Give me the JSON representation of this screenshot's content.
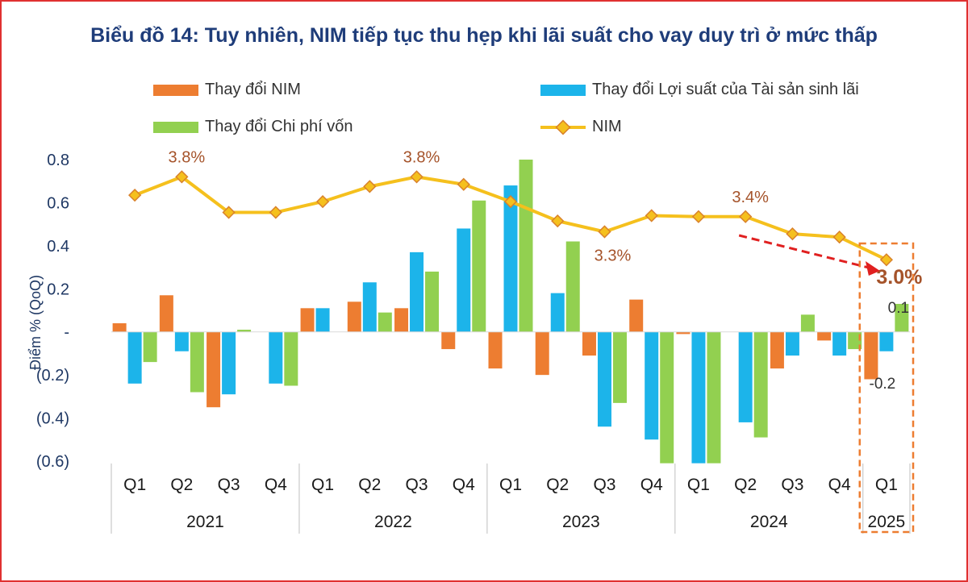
{
  "title": "Biểu đồ 14: Tuy nhiên, NIM tiếp tục thu hẹp khi lãi suất cho vay duy trì ở mức thấp",
  "legend": {
    "nim_change": "Thay đổi NIM",
    "yield_change": "Thay đổi Lợi suất của Tài sản sinh lãi",
    "cof_change": "Thay đổi Chi phí vốn",
    "nim": "NIM"
  },
  "colors": {
    "nim_change": "#ed7d31",
    "yield_change": "#1cb4ea",
    "cof_change": "#92d050",
    "nim": "#f5c01d",
    "nim_marker_edge": "#d9822b",
    "axis_text": "#1f3864",
    "label_text": "#a5532a",
    "arrow": "#e02020",
    "highlight": "#ed7d31"
  },
  "chart_data": {
    "type": "bar",
    "ylabel": "Điểm % (QoQ)",
    "ylim": [
      -0.6,
      0.8
    ],
    "yticks": [
      0.8,
      0.6,
      0.4,
      0.2,
      0,
      -0.2,
      -0.4,
      -0.6
    ],
    "ytick_labels": [
      "0.8",
      "0.6",
      "0.4",
      "0.2",
      "-",
      "(0.2)",
      "(0.4)",
      "(0.6)"
    ],
    "categories": [
      "Q1",
      "Q2",
      "Q3",
      "Q4",
      "Q1",
      "Q2",
      "Q3",
      "Q4",
      "Q1",
      "Q2",
      "Q3",
      "Q4",
      "Q1",
      "Q2",
      "Q3",
      "Q4",
      "Q1"
    ],
    "years": [
      {
        "label": "2021",
        "count": 4
      },
      {
        "label": "2022",
        "count": 4
      },
      {
        "label": "2023",
        "count": 4
      },
      {
        "label": "2024",
        "count": 4
      },
      {
        "label": "2025",
        "count": 1
      }
    ],
    "series": [
      {
        "name": "Thay đổi NIM",
        "values": [
          0.04,
          0.17,
          -0.35,
          0.0,
          0.11,
          0.14,
          0.11,
          -0.08,
          -0.17,
          -0.2,
          -0.11,
          0.15,
          -0.01,
          0.0,
          -0.17,
          -0.04,
          -0.22
        ]
      },
      {
        "name": "Thay đổi Lợi suất của Tài sản sinh lãi",
        "values": [
          -0.24,
          -0.09,
          -0.29,
          -0.24,
          0.11,
          0.23,
          0.37,
          0.48,
          0.68,
          0.18,
          -0.44,
          -0.5,
          -0.61,
          -0.42,
          -0.11,
          -0.11,
          -0.09
        ]
      },
      {
        "name": "Thay đổi Chi phí vốn",
        "values": [
          -0.14,
          -0.28,
          0.01,
          -0.25,
          0.0,
          0.09,
          0.28,
          0.61,
          0.8,
          0.42,
          -0.33,
          -0.61,
          -0.61,
          -0.49,
          0.08,
          -0.08,
          0.13
        ]
      }
    ],
    "line": {
      "name": "NIM",
      "plot_values": [
        0.635,
        0.72,
        0.555,
        0.555,
        0.605,
        0.675,
        0.72,
        0.685,
        0.605,
        0.515,
        0.465,
        0.54,
        0.535,
        0.535,
        0.455,
        0.44,
        0.335
      ],
      "labels": [
        {
          "index": 1,
          "text": "3.8%",
          "pos": "above"
        },
        {
          "index": 6,
          "text": "3.8%",
          "pos": "above"
        },
        {
          "index": 10,
          "text": "3.3%",
          "pos": "below"
        },
        {
          "index": 13,
          "text": "3.4%",
          "pos": "above"
        },
        {
          "index": 16,
          "text": "3.0%",
          "pos": "below-bold"
        }
      ]
    },
    "annotations": [
      {
        "text": "0.1",
        "series": 2,
        "index": 16
      },
      {
        "text": "-0.2",
        "series": 0,
        "index": 16
      }
    ]
  }
}
